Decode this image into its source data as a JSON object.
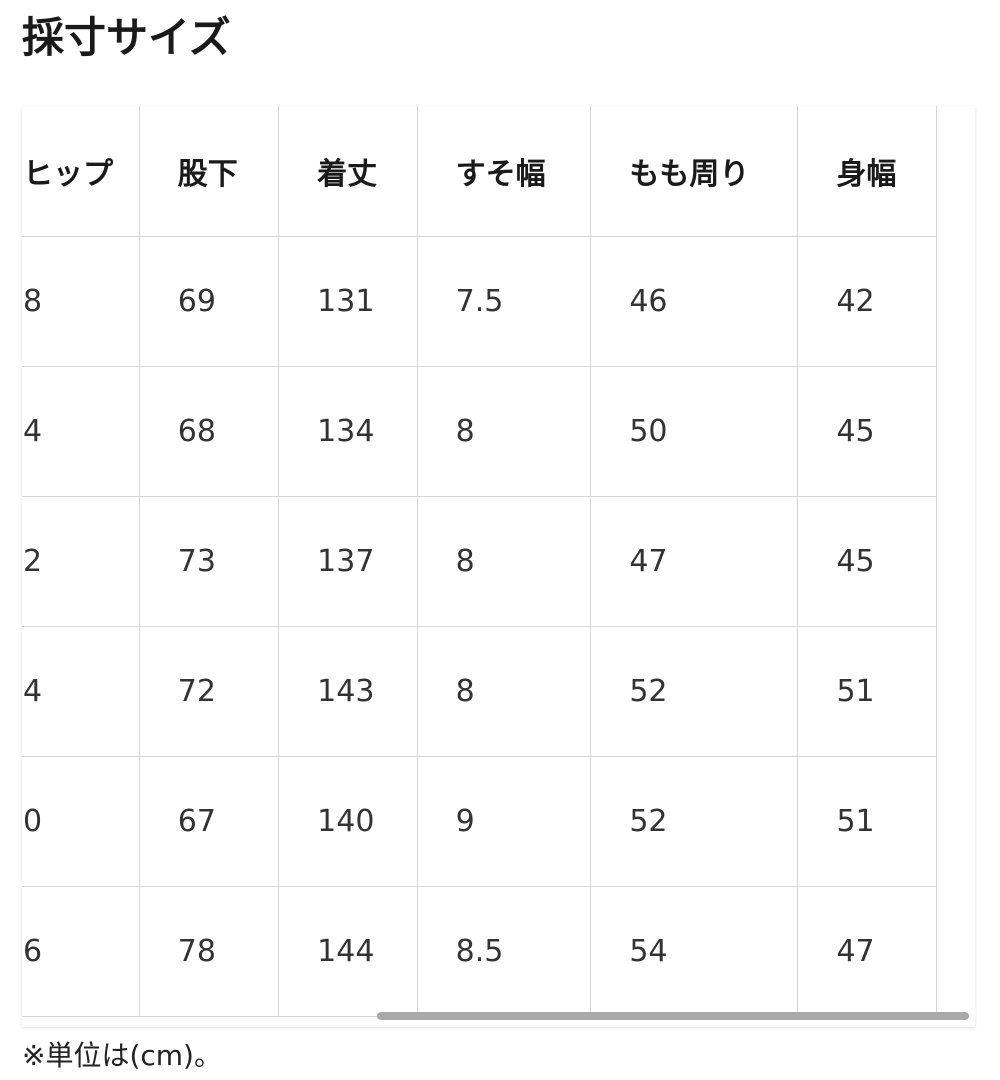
{
  "title": "採寸サイズ",
  "table": {
    "headers": [
      "ヒップ",
      "股下",
      "着丈",
      "すそ幅",
      "もも周り",
      "身幅"
    ],
    "rows": [
      [
        "8",
        "69",
        "131",
        "7.5",
        "46",
        "42"
      ],
      [
        "4",
        "68",
        "134",
        "8",
        "50",
        "45"
      ],
      [
        "2",
        "73",
        "137",
        "8",
        "47",
        "45"
      ],
      [
        "4",
        "72",
        "143",
        "8",
        "52",
        "51"
      ],
      [
        "0",
        "67",
        "140",
        "9",
        "52",
        "51"
      ],
      [
        "6",
        "78",
        "144",
        "8.5",
        "54",
        "47"
      ]
    ]
  },
  "note": "※単位は(cm)。"
}
